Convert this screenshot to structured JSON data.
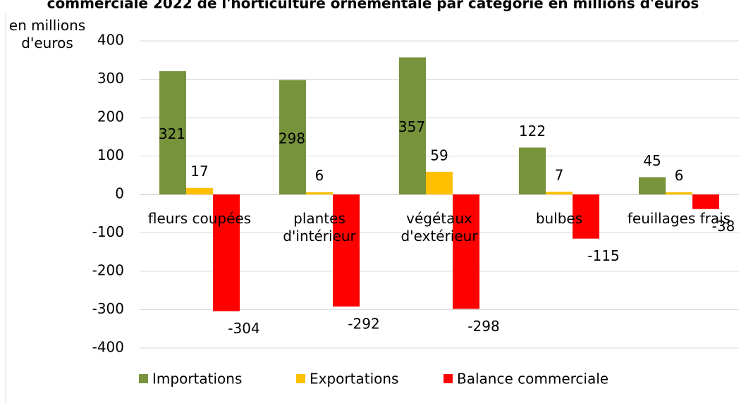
{
  "chart_data": {
    "type": "bar",
    "title": "commerciale 2022 de l'horticulture ornementale par catégorie en millions d'euros",
    "y_label": "en millions d'euros",
    "categories": [
      "fleurs coupées",
      "plantes d'intérieur",
      "végétaux d'extérieur",
      "bulbes",
      "feuillages frais"
    ],
    "series": [
      {
        "name": "Importations",
        "color": "#77933c",
        "values": [
          321,
          298,
          357,
          122,
          45
        ]
      },
      {
        "name": "Exportations",
        "color": "#ffc000",
        "values": [
          17,
          6,
          59,
          7,
          6
        ]
      },
      {
        "name": "Balance commerciale",
        "color": "#ff0000",
        "values": [
          -304,
          -292,
          -298,
          -115,
          -38
        ]
      }
    ],
    "ylim": [
      -400,
      400
    ],
    "yticks": [
      -400,
      -300,
      -200,
      -100,
      0,
      100,
      200,
      300,
      400
    ],
    "grid": true,
    "legend": "bottom"
  }
}
